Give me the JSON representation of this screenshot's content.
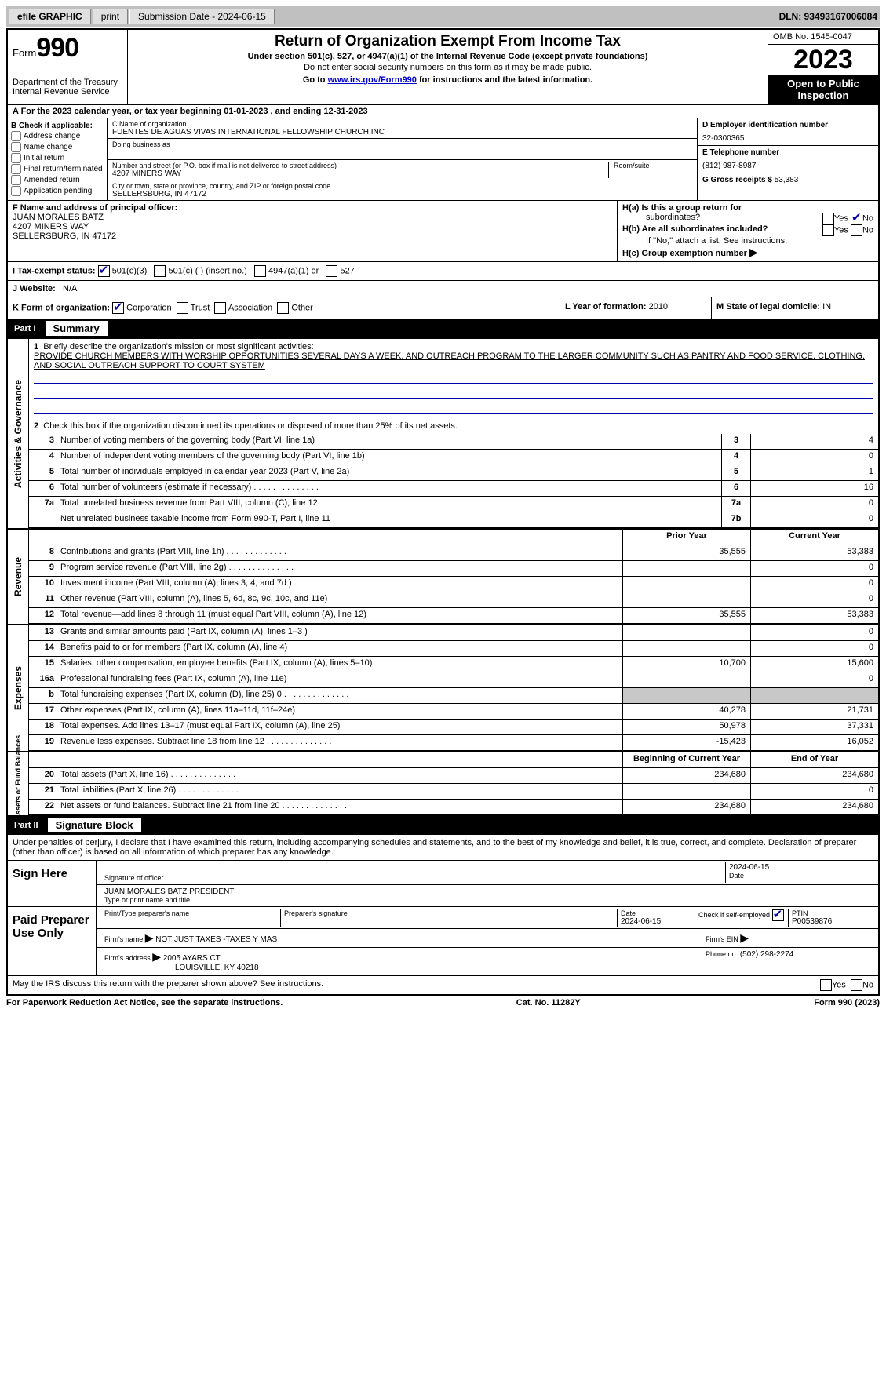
{
  "topbar": {
    "efile": "efile",
    "graphic": "GRAPHIC",
    "print": "print",
    "submission": "Submission Date - 2024-06-15",
    "dln": "DLN: 93493167006084"
  },
  "header": {
    "form_word": "Form",
    "form_num": "990",
    "dept": "Department of the Treasury",
    "irs": "Internal Revenue Service",
    "title": "Return of Organization Exempt From Income Tax",
    "sub1": "Under section 501(c), 527, or 4947(a)(1) of the Internal Revenue Code (except private foundations)",
    "sub2": "Do not enter social security numbers on this form as it may be made public.",
    "sub3_pre": "Go to ",
    "sub3_link": "www.irs.gov/Form990",
    "sub3_post": " for instructions and the latest information.",
    "omb": "OMB No. 1545-0047",
    "year": "2023",
    "open": "Open to Public Inspection"
  },
  "row_a": "A For the 2023 calendar year, or tax year beginning 01-01-2023    , and ending 12-31-2023",
  "col_b": {
    "hdr": "B Check if applicable:",
    "items": [
      "Address change",
      "Name change",
      "Initial return",
      "Final return/terminated",
      "Amended return",
      "Application pending"
    ]
  },
  "col_c": {
    "name_lbl": "C Name of organization",
    "name": "FUENTES DE AGUAS VIVAS INTERNATIONAL FELLOWSHIP CHURCH INC",
    "dba_lbl": "Doing business as",
    "dba": "",
    "street_lbl": "Number and street (or P.O. box if mail is not delivered to street address)",
    "street": "4207 MINERS WAY",
    "room_lbl": "Room/suite",
    "room": "",
    "city_lbl": "City or town, state or province, country, and ZIP or foreign postal code",
    "city": "SELLERSBURG, IN  47172"
  },
  "col_d": {
    "ein_lbl": "D Employer identification number",
    "ein": "32-0300365",
    "tel_lbl": "E Telephone number",
    "tel": "(812) 987-8987",
    "gross_lbl": "G Gross receipts $",
    "gross": "53,383"
  },
  "f": {
    "lbl": "F  Name and address of principal officer:",
    "l1": "JUAN MORALES BATZ",
    "l2": "4207 MINERS WAY",
    "l3": "SELLERSBURG, IN  47172"
  },
  "h": {
    "a": "H(a)  Is this a group return for",
    "a2": "subordinates?",
    "b": "H(b)  Are all subordinates included?",
    "b2": "If \"No,\" attach a list. See instructions.",
    "c": "H(c)  Group exemption number  ",
    "yes": "Yes",
    "no": "No"
  },
  "i": {
    "lbl": "I   Tax-exempt status:",
    "o1": "501(c)(3)",
    "o2": "501(c) (  ) (insert no.)",
    "o3": "4947(a)(1) or",
    "o4": "527"
  },
  "j": {
    "lbl": "J   Website: ",
    "val": "N/A"
  },
  "k": {
    "lbl": "K Form of organization:",
    "o1": "Corporation",
    "o2": "Trust",
    "o3": "Association",
    "o4": "Other"
  },
  "l": {
    "lbl": "L Year of formation:",
    "val": "2010"
  },
  "m": {
    "lbl": "M State of legal domicile:",
    "val": "IN"
  },
  "part1": {
    "n": "Part I",
    "t": "Summary"
  },
  "summary": {
    "q1": "Briefly describe the organization's mission or most significant activities:",
    "mission": "PROVIDE CHURCH MEMBERS WITH WORSHIP OPPORTUNITIES SEVERAL DAYS A WEEK, AND OUTREACH PROGRAM TO THE LARGER COMMUNITY SUCH AS PANTRY AND FOOD SERVICE, CLOTHING, AND SOCIAL OUTREACH SUPPORT TO COURT SYSTEM",
    "q2": "Check this box          if the organization discontinued its operations or disposed of more than 25% of its net assets.",
    "rows": [
      {
        "n": "3",
        "d": "Number of voting members of the governing body (Part VI, line 1a)",
        "r": "3",
        "v": "4"
      },
      {
        "n": "4",
        "d": "Number of independent voting members of the governing body (Part VI, line 1b)",
        "r": "4",
        "v": "0"
      },
      {
        "n": "5",
        "d": "Total number of individuals employed in calendar year 2023 (Part V, line 2a)",
        "r": "5",
        "v": "1"
      },
      {
        "n": "6",
        "d": "Total number of volunteers (estimate if necessary)",
        "r": "6",
        "v": "16"
      },
      {
        "n": "7a",
        "d": "Total unrelated business revenue from Part VIII, column (C), line 12",
        "r": "7a",
        "v": "0"
      },
      {
        "n": "",
        "d": "Net unrelated business taxable income from Form 990-T, Part I, line 11",
        "r": "7b",
        "v": "0"
      }
    ]
  },
  "sections": {
    "vtabs": [
      "Activities & Governance",
      "Revenue",
      "Expenses",
      "Net Assets or Fund Balances"
    ],
    "col_hdrs": {
      "prior": "Prior Year",
      "current": "Current Year",
      "beg": "Beginning of Current Year",
      "end": "End of Year"
    }
  },
  "revenue": [
    {
      "n": "8",
      "d": "Contributions and grants (Part VIII, line 1h)",
      "p": "35,555",
      "c": "53,383"
    },
    {
      "n": "9",
      "d": "Program service revenue (Part VIII, line 2g)",
      "p": "",
      "c": "0"
    },
    {
      "n": "10",
      "d": "Investment income (Part VIII, column (A), lines 3, 4, and 7d )",
      "p": "",
      "c": "0"
    },
    {
      "n": "11",
      "d": "Other revenue (Part VIII, column (A), lines 5, 6d, 8c, 9c, 10c, and 11e)",
      "p": "",
      "c": "0"
    },
    {
      "n": "12",
      "d": "Total revenue—add lines 8 through 11 (must equal Part VIII, column (A), line 12)",
      "p": "35,555",
      "c": "53,383"
    }
  ],
  "expenses": [
    {
      "n": "13",
      "d": "Grants and similar amounts paid (Part IX, column (A), lines 1–3 )",
      "p": "",
      "c": "0"
    },
    {
      "n": "14",
      "d": "Benefits paid to or for members (Part IX, column (A), line 4)",
      "p": "",
      "c": "0"
    },
    {
      "n": "15",
      "d": "Salaries, other compensation, employee benefits (Part IX, column (A), lines 5–10)",
      "p": "10,700",
      "c": "15,600"
    },
    {
      "n": "16a",
      "d": "Professional fundraising fees (Part IX, column (A), line 11e)",
      "p": "",
      "c": "0"
    },
    {
      "n": "b",
      "d": "Total fundraising expenses (Part IX, column (D), line 25) 0",
      "p": "shade",
      "c": "shade"
    },
    {
      "n": "17",
      "d": "Other expenses (Part IX, column (A), lines 11a–11d, 11f–24e)",
      "p": "40,278",
      "c": "21,731"
    },
    {
      "n": "18",
      "d": "Total expenses. Add lines 13–17 (must equal Part IX, column (A), line 25)",
      "p": "50,978",
      "c": "37,331"
    },
    {
      "n": "19",
      "d": "Revenue less expenses. Subtract line 18 from line 12",
      "p": "-15,423",
      "c": "16,052"
    }
  ],
  "netassets": [
    {
      "n": "20",
      "d": "Total assets (Part X, line 16)",
      "p": "234,680",
      "c": "234,680"
    },
    {
      "n": "21",
      "d": "Total liabilities (Part X, line 26)",
      "p": "",
      "c": "0"
    },
    {
      "n": "22",
      "d": "Net assets or fund balances. Subtract line 21 from line 20",
      "p": "234,680",
      "c": "234,680"
    }
  ],
  "part2": {
    "n": "Part II",
    "t": "Signature Block"
  },
  "perjury": "Under penalties of perjury, I declare that I have examined this return, including accompanying schedules and statements, and to the best of my knowledge and belief, it is true, correct, and complete. Declaration of preparer (other than officer) is based on all information of which preparer has any knowledge.",
  "sign": {
    "here": "Sign Here",
    "sig_lbl": "Signature of officer",
    "date_lbl": "Date",
    "date": "2024-06-15",
    "name_lbl": "Type or print name and title",
    "name": "JUAN MORALES BATZ  PRESIDENT"
  },
  "paid": {
    "title": "Paid Preparer Use Only",
    "print_lbl": "Print/Type preparer's name",
    "print": "",
    "sig_lbl": "Preparer's signature",
    "date_lbl": "Date",
    "date": "2024-06-15",
    "check_lbl": "Check          if self-employed",
    "ptin_lbl": "PTIN",
    "ptin": "P00539876",
    "firm_name_lbl": "Firm's name     ",
    "firm_name": "NOT JUST TAXES -TAXES Y MAS",
    "firm_ein_lbl": "Firm's EIN  ",
    "firm_ein": "",
    "firm_addr_lbl": "Firm's address  ",
    "firm_addr1": "2005 AYARS CT",
    "firm_addr2": "LOUISVILLE, KY  40218",
    "phone_lbl": "Phone no.",
    "phone": "(502) 298-2274"
  },
  "discuss": "May the IRS discuss this return with the preparer shown above? See instructions.",
  "footer": {
    "left": "For Paperwork Reduction Act Notice, see the separate instructions.",
    "mid": "Cat. No. 11282Y",
    "right": "Form 990 (2023)"
  }
}
